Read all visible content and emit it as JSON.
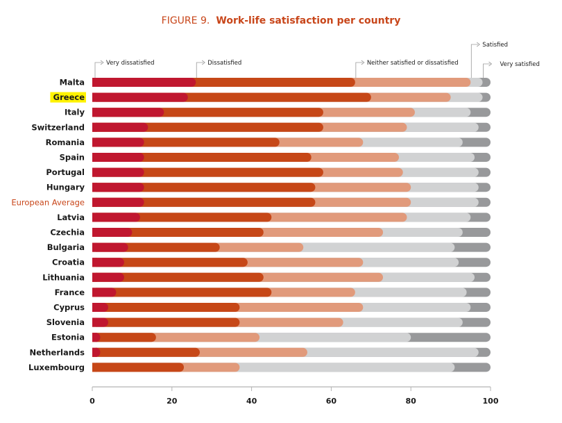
{
  "chart_data": {
    "type": "bar",
    "orientation": "horizontal",
    "stacked": true,
    "title_prefix": "FIGURE 9.",
    "title": "Work-life satisfaction per country",
    "xlabel": "",
    "ylabel": "",
    "xlim": [
      0,
      100
    ],
    "xticks": [
      "0",
      "20",
      "40",
      "60",
      "80",
      "100"
    ],
    "grid": false,
    "legend_placement": "top (callouts)",
    "highlighted_category": "Greece",
    "average_category": "European Average",
    "categories": [
      "Malta",
      "Greece",
      "Italy",
      "Switzerland",
      "Romania",
      "Spain",
      "Portugal",
      "Hungary",
      "European Average",
      "Latvia",
      "Czechia",
      "Bulgaria",
      "Croatia",
      "Lithuania",
      "France",
      "Cyprus",
      "Slovenia",
      "Estonia",
      "Netherlands",
      "Luxembourg"
    ],
    "series": [
      {
        "name": "Very dissatisfied",
        "color": "#c0172f",
        "values": [
          26,
          24,
          18,
          14,
          13,
          13,
          13,
          13,
          13,
          12,
          10,
          9,
          8,
          8,
          6,
          4,
          4,
          2,
          2,
          0
        ]
      },
      {
        "name": "Dissatisfied",
        "color": "#c64717",
        "values": [
          40,
          46,
          40,
          44,
          34,
          42,
          45,
          43,
          43,
          33,
          33,
          23,
          31,
          35,
          39,
          33,
          33,
          14,
          25,
          23
        ]
      },
      {
        "name": "Neither satisfied or dissatisfied",
        "color": "#e19a7b",
        "values": [
          29,
          20,
          23,
          21,
          21,
          22,
          20,
          24,
          24,
          34,
          30,
          21,
          29,
          30,
          21,
          31,
          26,
          26,
          27,
          14
        ]
      },
      {
        "name": "Satisfied",
        "color": "#d1d2d3",
        "values": [
          3,
          8,
          14,
          18,
          25,
          19,
          19,
          17,
          17,
          16,
          20,
          38,
          24,
          23,
          28,
          27,
          30,
          38,
          43,
          54
        ]
      },
      {
        "name": "Very satisfied",
        "color": "#98999b",
        "values": [
          2,
          2,
          5,
          3,
          7,
          4,
          3,
          3,
          3,
          5,
          7,
          9,
          8,
          4,
          6,
          5,
          7,
          20,
          3,
          9
        ]
      }
    ]
  },
  "colors": {
    "title": "#c8461a",
    "highlight_bg": "#fff200",
    "average_label": "#c8461a",
    "axis": "#b3b3b3"
  }
}
